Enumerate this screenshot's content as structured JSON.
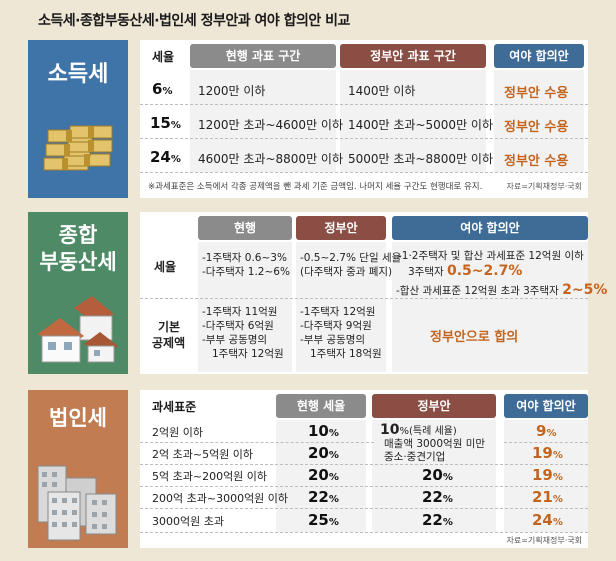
{
  "title": "소득세·종합부동산세·법인세 정부안과 여야 합의안 비교",
  "income_tax": {
    "label": "소득세",
    "col_rate": "세율",
    "col_current": "현행 과표 구간",
    "col_gov": "정부안 과표 구간",
    "col_agree": "여야 합의안",
    "rows": [
      {
        "rate": "6",
        "unit": "%",
        "current": "1200만 이하",
        "gov": "1400만 이하",
        "agree": "정부안 수용"
      },
      {
        "rate": "15",
        "unit": "%",
        "current": "1200만 초과~4600만 이하",
        "gov": "1400만 초과~5000만 이하",
        "agree": "정부안 수용"
      },
      {
        "rate": "24",
        "unit": "%",
        "current": "4600만 초과~8800만 이하",
        "gov": "5000만 초과~8800만 이하",
        "agree": "정부안 수용"
      }
    ],
    "note": "※과세표준은 소득에서 각종 공제액을 뺀 과세 기준 금액임. 나머지 세율 구간도 현행대로 유지.",
    "source": "자료=기획재정부·국회"
  },
  "property_tax": {
    "label_line1": "종합",
    "label_line2": "부동산세",
    "col_current": "현행",
    "col_gov": "정부안",
    "col_agree": "여야 합의안",
    "row1_label": "세율",
    "row1_current_1": "-1주택자 0.6~3%",
    "row1_current_2": "-다주택자 1.2~6%",
    "row1_gov_1": "-0.5~2.7% 단일 세율",
    "row1_gov_2": "(다주택자 중과 폐지)",
    "row1_agree_1": "-1·2주택자 및 합산 과세표준 12억원 이하",
    "row1_agree_2a": "3주택자 ",
    "row1_agree_2b": "0.5~2.7%",
    "row1_agree_3a": "-합산 과세표준 12억원 초과 3주택자 ",
    "row1_agree_3b": "2~5%",
    "row2_label_1": "기본",
    "row2_label_2": "공제액",
    "row2_current_1": "-1주택자 11억원",
    "row2_current_2": "-다주택자 6억원",
    "row2_current_3": "-부부 공동명의",
    "row2_current_4": "1주택자 12억원",
    "row2_gov_1": "-1주택자 12억원",
    "row2_gov_2": "-다주택자 9억원",
    "row2_gov_3": "-부부 공동명의",
    "row2_gov_4": "1주택자 18억원",
    "row2_agree": "정부안으로 합의"
  },
  "corp_tax": {
    "label": "법인세",
    "col_base": "과세표준",
    "col_current": "현행 세율",
    "col_gov": "정부안",
    "col_agree": "여야 합의안",
    "rows": [
      {
        "base": "2억원 이하",
        "current": "10",
        "agree": "9"
      },
      {
        "base": "2억 초과~5억원 이하",
        "current": "20",
        "agree": "19"
      },
      {
        "base": "5억 초과~200억원 이하",
        "current": "20",
        "gov": "20",
        "agree": "19"
      },
      {
        "base": "200억 초과~3000억원 이하",
        "current": "22",
        "gov": "22",
        "agree": "21"
      },
      {
        "base": "3000억원 초과",
        "current": "25",
        "gov": "22",
        "agree": "24"
      }
    ],
    "unit": "%",
    "gov_special_rate": "10",
    "gov_special_unit": "%(특례 세율)",
    "gov_special_line2": "매출액 3000억원 미만",
    "gov_special_line3": "중소·중견기업",
    "source": "자료=기획재정부·국회"
  },
  "colors": {
    "income": "#3f74a8",
    "property": "#4e8a66",
    "corp": "#c27c52",
    "accent": "#c4651f"
  }
}
